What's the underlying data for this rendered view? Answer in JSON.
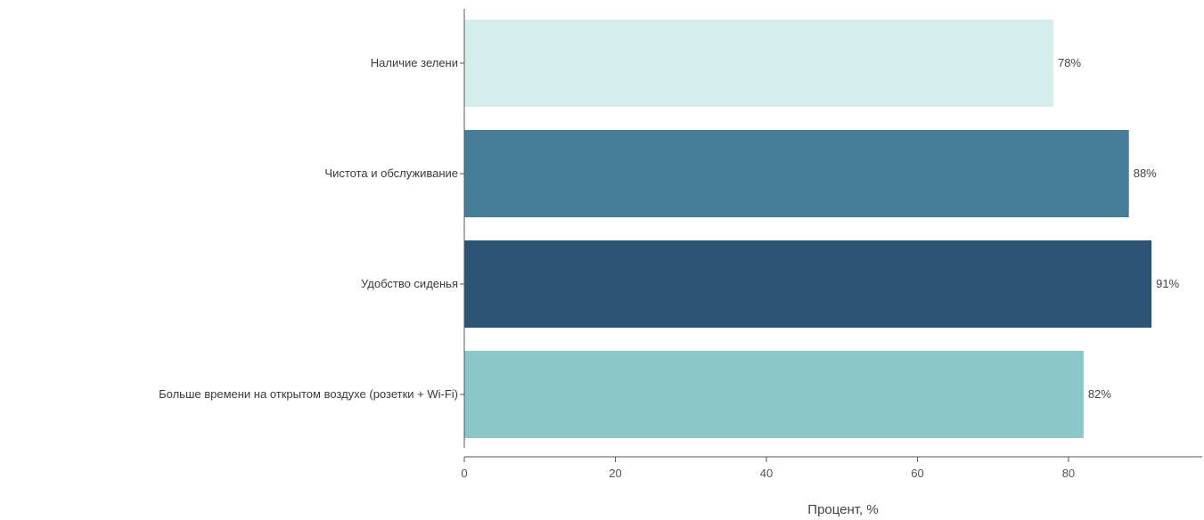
{
  "chart_data": {
    "type": "bar",
    "orientation": "horizontal",
    "categories": [
      "Наличие зелени",
      "Чистота и обслуживание",
      "Удобство сиденья",
      "Больше времени на открытом воздухе (розетки + Wi-Fi)"
    ],
    "values": [
      78,
      88,
      91,
      82
    ],
    "data_labels": [
      "78%",
      "88%",
      "91%",
      "82%"
    ],
    "bar_colors": [
      "#d3eeea",
      "#467e99",
      "#2c5575",
      "#8bc6c8"
    ],
    "title": "",
    "xlabel": "Процент, %",
    "ylabel": "",
    "xlim": [
      0,
      97
    ],
    "x_ticks": [
      0,
      20,
      40,
      60,
      80
    ],
    "x_tick_labels": [
      "0",
      "20",
      "40",
      "60",
      "80"
    ],
    "grid": false,
    "legend": "none"
  }
}
